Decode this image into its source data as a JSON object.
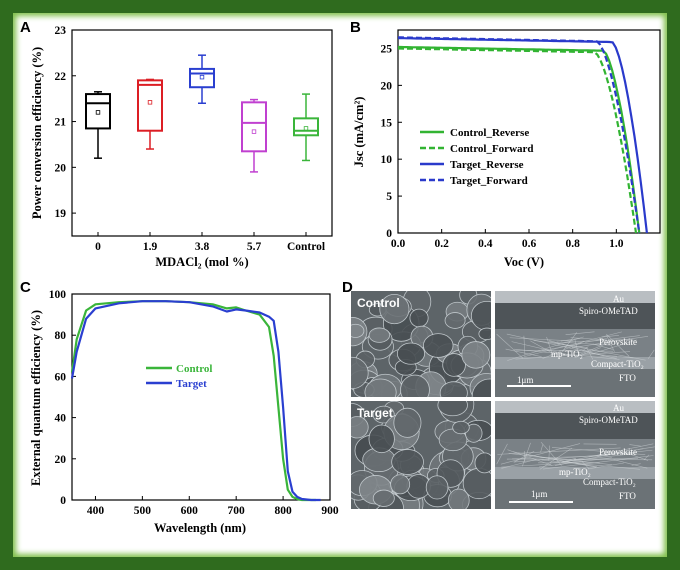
{
  "colors": {
    "frame": "#2f6b1e",
    "black": "#000000",
    "red": "#dc1e24",
    "blue": "#2a3fd0",
    "magenta": "#c040d0",
    "green": "#3ab53a",
    "greenLine": "#32b432",
    "blueLine": "#2a3acb"
  },
  "panels": {
    "A": "A",
    "B": "B",
    "C": "C",
    "D": "D"
  },
  "chart_data": [
    {
      "type": "box",
      "panel": "A",
      "xlabel": "MDACl₂ (mol %)",
      "ylabel": "Power conversion efficiency (%)",
      "categories": [
        "0",
        "1.9",
        "3.8",
        "5.7",
        "Control"
      ],
      "ylim": [
        18.5,
        23
      ],
      "yticks": [
        19,
        20,
        21,
        22,
        23
      ],
      "boxes": [
        {
          "category": "0",
          "color": "#000000",
          "min": 20.2,
          "q1": 20.85,
          "median": 21.4,
          "q3": 21.6,
          "max": 21.65,
          "mean": 21.2
        },
        {
          "category": "1.9",
          "color": "#dc1e24",
          "min": 20.4,
          "q1": 20.8,
          "median": 21.8,
          "q3": 21.9,
          "max": 21.92,
          "mean": 21.42
        },
        {
          "category": "3.8",
          "color": "#2a3fd0",
          "min": 21.4,
          "q1": 21.75,
          "median": 22.05,
          "q3": 22.15,
          "max": 22.45,
          "mean": 21.97
        },
        {
          "category": "5.7",
          "color": "#c040d0",
          "min": 19.9,
          "q1": 20.35,
          "median": 20.97,
          "q3": 21.42,
          "max": 21.48,
          "mean": 20.78
        },
        {
          "category": "Control",
          "color": "#3ab53a",
          "min": 20.15,
          "q1": 20.7,
          "median": 20.8,
          "q3": 21.07,
          "max": 21.6,
          "mean": 20.85
        }
      ]
    },
    {
      "type": "line",
      "panel": "B",
      "xlabel": "Voc (V)",
      "ylabel": "Jsc (mA/cm²)",
      "xlim": [
        0,
        1.2
      ],
      "ylim": [
        0,
        27.5
      ],
      "xticks": [
        0.0,
        0.2,
        0.4,
        0.6,
        0.8,
        1.0
      ],
      "xtickLabels": [
        "0.0",
        "0.2",
        "0.4",
        "0.6",
        "0.8",
        "1.0"
      ],
      "yticks": [
        0,
        5,
        10,
        15,
        20,
        25
      ],
      "legend_position": "lower-left",
      "series": [
        {
          "name": "Control_Reverse",
          "color": "#32b432",
          "dash": false,
          "jsc": 25.2,
          "voc": 1.105,
          "knee": 0.94
        },
        {
          "name": "Control_Forward",
          "color": "#32b432",
          "dash": true,
          "jsc": 25.0,
          "voc": 1.09,
          "knee": 0.9
        },
        {
          "name": "Target_Reverse",
          "color": "#2a3acb",
          "dash": false,
          "jsc": 26.4,
          "voc": 1.14,
          "knee": 0.98
        },
        {
          "name": "Target_Forward",
          "color": "#2a3acb",
          "dash": true,
          "jsc": 26.5,
          "voc": 1.105,
          "knee": 0.91
        }
      ]
    },
    {
      "type": "line",
      "panel": "C",
      "xlabel": "Wavelength (nm)",
      "ylabel": "External quantum efficiency (%)",
      "xlim": [
        350,
        900
      ],
      "ylim": [
        0,
        100
      ],
      "xticks": [
        400,
        500,
        600,
        700,
        800,
        900
      ],
      "yticks": [
        0,
        20,
        40,
        60,
        80,
        100
      ],
      "legend_position": "center-left",
      "series": [
        {
          "name": "Control",
          "color": "#3ab53a",
          "x": [
            350,
            360,
            380,
            400,
            450,
            500,
            550,
            600,
            650,
            680,
            700,
            720,
            750,
            770,
            780,
            790,
            800,
            810,
            820,
            830,
            840,
            850,
            870
          ],
          "y": [
            62,
            78,
            92,
            95,
            96,
            96.5,
            96.5,
            96,
            95,
            93,
            93.5,
            92,
            90,
            84,
            70,
            45,
            20,
            5,
            1.5,
            0.5,
            0,
            0,
            0
          ]
        },
        {
          "name": "Target",
          "color": "#2a3fd0",
          "x": [
            350,
            360,
            380,
            400,
            450,
            500,
            550,
            600,
            650,
            680,
            700,
            720,
            750,
            770,
            780,
            790,
            800,
            810,
            820,
            830,
            840,
            860,
            880
          ],
          "y": [
            59,
            72,
            88,
            93,
            95.5,
            96.5,
            96.5,
            96,
            94,
            91.5,
            92.5,
            92,
            91,
            89,
            87,
            72,
            45,
            14,
            4,
            1.5,
            0.5,
            0,
            0
          ]
        }
      ]
    }
  ],
  "sem": {
    "control_label": "Control",
    "target_label": "Target",
    "cross_labels": {
      "au": "Au",
      "spiro": "Spiro-OMeTAD",
      "perov": "Perovskite",
      "mp": "mp-TiO₂",
      "compact": "Compact-TiO₂",
      "fto": "FTO",
      "scale": "1μm"
    }
  }
}
